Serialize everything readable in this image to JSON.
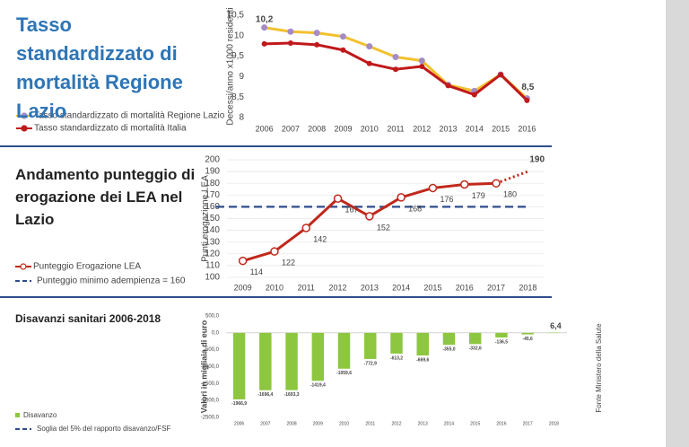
{
  "chart_data": [
    {
      "type": "line",
      "title": "Tasso standardizzato di mortalità Regione Lazio",
      "y_label": "Decessi/anno x1000 residenti",
      "categories": [
        "2006",
        "2007",
        "2008",
        "2009",
        "2010",
        "2011",
        "2012",
        "2013",
        "2014",
        "2015",
        "2016"
      ],
      "series": [
        {
          "name": "Tasso standardizzato di mortalità Regione Lazio",
          "color": "#f2c12e",
          "marker_color": "#a48bc8",
          "values": [
            10.2,
            10.1,
            10.07,
            9.98,
            9.74,
            9.48,
            9.39,
            8.8,
            8.65,
            9.05,
            8.47
          ],
          "value_labels": [
            "10,2",
            null,
            null,
            null,
            null,
            null,
            null,
            null,
            null,
            null,
            "8,5"
          ]
        },
        {
          "name": "Tasso standardizzato di mortalità Italia",
          "color": "#c0191b",
          "marker_color": "#c0191b",
          "values": [
            9.8,
            9.82,
            9.78,
            9.65,
            9.32,
            9.18,
            9.25,
            8.78,
            8.56,
            9.05,
            8.42
          ]
        }
      ],
      "ylim": [
        8,
        10.5
      ],
      "yticks": [
        8,
        {
          "value": 8.5,
          "label": "8,5"
        },
        9,
        {
          "value": 9.5,
          "label": "9,5"
        },
        10,
        {
          "value": 10.5,
          "label": "10,5"
        }
      ],
      "grid": false
    },
    {
      "type": "line",
      "title": "Andamento punteggio di erogazione dei LEA nel Lazio",
      "y_label": "Punti erogazione LEA",
      "categories": [
        "2009",
        "2010",
        "2011",
        "2012",
        "2013",
        "2014",
        "2015",
        "2016",
        "2017",
        "2018"
      ],
      "series": [
        {
          "name": "Punteggio Erogazione LEA",
          "color": "#c0281b",
          "marker_color": "#c0281b",
          "values": [
            114,
            122,
            142,
            167,
            152,
            168,
            176,
            179,
            180,
            190
          ],
          "dotted_from": "2017"
        }
      ],
      "reference_lines": [
        {
          "name": "Punteggio minimo adempienza = 160",
          "value": 160,
          "color": "#2e4d8c"
        }
      ],
      "ylim": [
        100,
        200
      ],
      "yticks": [
        100,
        110,
        120,
        130,
        140,
        150,
        160,
        170,
        180,
        190,
        200
      ],
      "grid": true
    },
    {
      "type": "bar",
      "title": "Disavanzi sanitari 2006-2018",
      "y_label": "Valori in migliaia di euro",
      "source": "Fonte Ministero della Salute",
      "categories": [
        "2006",
        "2007",
        "2008",
        "2009",
        "2010",
        "2011",
        "2012",
        "2013",
        "2014",
        "2015",
        "2016",
        "2017",
        "2018"
      ],
      "series": [
        {
          "name": "Disavanzo",
          "color": "#8dc63f",
          "values": [
            -1966.9,
            -1696.4,
            -1693.3,
            -1419.4,
            -1059.6,
            -772.9,
            -613.2,
            -669.6,
            -355.0,
            -332.6,
            -136.5,
            -45.6,
            6.4
          ],
          "value_labels": [
            "-1966,9",
            "-1696,4",
            "-1693,3",
            "-1419,4",
            "-1059,6",
            "-772,9",
            "-613,2",
            "-669,6",
            "-355,0",
            "-332,6",
            "-136,5",
            "-45,6",
            "6,4"
          ]
        }
      ],
      "reference_lines": [
        {
          "name": "Soglia del 5% del rapporto disavanzo/FSF",
          "color": "#2e4d8c"
        }
      ],
      "ylim": [
        -2500,
        500
      ],
      "yticks": [
        {
          "value": -2500,
          "label": "-2500,0"
        },
        {
          "value": -2000,
          "label": "-2000,0"
        },
        {
          "value": -1500,
          "label": "-1500,0"
        },
        {
          "value": -1000,
          "label": "-1000,0"
        },
        {
          "value": -500,
          "label": "-500,0"
        },
        {
          "value": 0,
          "label": "0,0"
        },
        {
          "value": 500,
          "label": "500,0"
        }
      ],
      "grid": false
    }
  ]
}
